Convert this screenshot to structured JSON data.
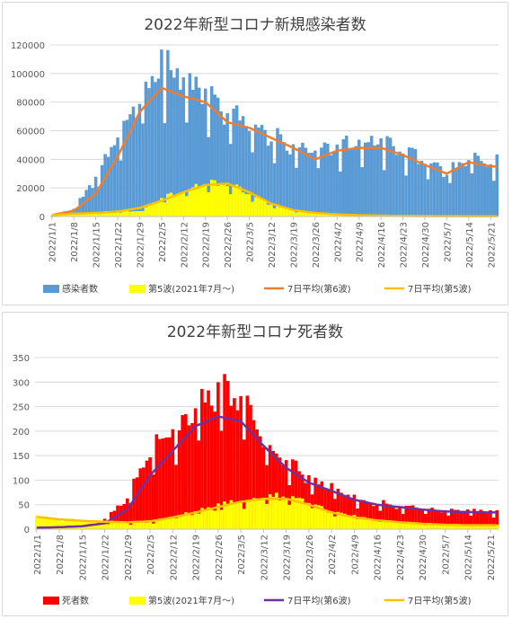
{
  "chart_data": [
    {
      "type": "bar",
      "title": "2022年新型コロナ新規感染者数",
      "y_ticks": [
        "0",
        "20000",
        "40000",
        "60000",
        "80000",
        "100000",
        "120000"
      ],
      "ylim": [
        0,
        120000
      ],
      "x_range": [
        "2022/1/1",
        "2022/5/23"
      ],
      "x_tick_labels": [
        "2022/1/1",
        "2022/1/8",
        "2022/1/15",
        "2022/1/22",
        "2022/1/29",
        "2022/2/5",
        "2022/2/12",
        "2022/2/19",
        "2022/2/26",
        "2022/3/5",
        "2022/3/12",
        "2022/3/19",
        "2022/3/26",
        "2022/4/2",
        "2022/4/9",
        "2022/4/16",
        "2022/4/23",
        "2022/4/30",
        "2022/5/7",
        "2022/5/14",
        "2022/5/21"
      ],
      "series": [
        {
          "name": "感染者数",
          "kind": "bar",
          "color": "#5b9bd5",
          "points": [
            [
              "1/1",
              500
            ],
            [
              "1/8",
              5000
            ],
            [
              "1/15",
              25000
            ],
            [
              "1/22",
              50000
            ],
            [
              "1/29",
              80000
            ],
            [
              "2/5",
              100000
            ],
            [
              "2/12",
              88000
            ],
            [
              "2/19",
              80000
            ],
            [
              "2/26",
              68000
            ],
            [
              "3/5",
              60000
            ],
            [
              "3/12",
              53000
            ],
            [
              "3/19",
              44000
            ],
            [
              "3/26",
              42000
            ],
            [
              "4/2",
              46000
            ],
            [
              "4/9",
              48000
            ],
            [
              "4/16",
              49000
            ],
            [
              "4/23",
              42000
            ],
            [
              "4/30",
              38000
            ],
            [
              "5/7",
              28000
            ],
            [
              "5/14",
              38000
            ],
            [
              "5/21",
              35000
            ]
          ]
        },
        {
          "name": "第5波(2021年7月～)",
          "kind": "bar",
          "color": "#ffff00",
          "points": [
            [
              "1/1",
              300
            ],
            [
              "1/8",
              1500
            ],
            [
              "1/15",
              2000
            ],
            [
              "1/22",
              3000
            ],
            [
              "1/29",
              4000
            ],
            [
              "2/5",
              12000
            ],
            [
              "2/12",
              18000
            ],
            [
              "2/19",
              22000
            ],
            [
              "2/26",
              22000
            ],
            [
              "3/5",
              15000
            ],
            [
              "3/12",
              8000
            ],
            [
              "3/19",
              4000
            ],
            [
              "3/26",
              2000
            ],
            [
              "4/2",
              1200
            ],
            [
              "4/9",
              800
            ],
            [
              "4/16",
              500
            ],
            [
              "4/23",
              400
            ],
            [
              "4/30",
              300
            ],
            [
              "5/7",
              250
            ],
            [
              "5/14",
              200
            ],
            [
              "5/21",
              200
            ]
          ]
        },
        {
          "name": "7日平均(第6波)",
          "kind": "line",
          "color": "#ed7d31",
          "points": [
            [
              "1/1",
              1000
            ],
            [
              "1/8",
              4000
            ],
            [
              "1/15",
              16000
            ],
            [
              "1/22",
              42000
            ],
            [
              "1/29",
              73000
            ],
            [
              "2/5",
              90000
            ],
            [
              "2/12",
              84000
            ],
            [
              "2/19",
              80000
            ],
            [
              "2/26",
              66000
            ],
            [
              "3/5",
              62000
            ],
            [
              "3/12",
              55000
            ],
            [
              "3/19",
              48000
            ],
            [
              "3/26",
              40000
            ],
            [
              "4/2",
              46000
            ],
            [
              "4/9",
              48000
            ],
            [
              "4/16",
              48000
            ],
            [
              "4/23",
              43000
            ],
            [
              "4/30",
              36000
            ],
            [
              "5/7",
              30000
            ],
            [
              "5/14",
              38000
            ],
            [
              "5/21",
              35000
            ]
          ]
        },
        {
          "name": "7日平均(第5波)",
          "kind": "line",
          "color": "#ffc000",
          "points": [
            [
              "1/1",
              1000
            ],
            [
              "1/8",
              2000
            ],
            [
              "1/15",
              2500
            ],
            [
              "1/22",
              3500
            ],
            [
              "1/29",
              6000
            ],
            [
              "2/5",
              11000
            ],
            [
              "2/12",
              17000
            ],
            [
              "2/19",
              22000
            ],
            [
              "2/26",
              23000
            ],
            [
              "3/5",
              17000
            ],
            [
              "3/12",
              9000
            ],
            [
              "3/19",
              4500
            ],
            [
              "3/26",
              2500
            ],
            [
              "4/2",
              1500
            ],
            [
              "4/9",
              900
            ],
            [
              "4/16",
              600
            ],
            [
              "4/23",
              400
            ],
            [
              "4/30",
              300
            ],
            [
              "5/7",
              250
            ],
            [
              "5/14",
              200
            ],
            [
              "5/21",
              200
            ]
          ]
        }
      ]
    },
    {
      "type": "bar",
      "title": "2022年新型コロナ死者数",
      "y_ticks": [
        "0",
        "50",
        "100",
        "150",
        "200",
        "250",
        "300",
        "350"
      ],
      "ylim": [
        0,
        350
      ],
      "x_range": [
        "2022/1/1",
        "2022/5/23"
      ],
      "x_tick_labels": [
        "2022/1/1",
        "2022/1/8",
        "2022/1/15",
        "2022/1/22",
        "2022/1/29",
        "2022/2/5",
        "2022/2/12",
        "2022/2/19",
        "2022/2/26",
        "2022/3/5",
        "2022/3/12",
        "2022/3/19",
        "2022/3/26",
        "2022/4/2",
        "2022/4/9",
        "2022/4/16",
        "2022/4/23",
        "2022/4/30",
        "2022/5/7",
        "2022/5/14",
        "2022/5/21"
      ],
      "series": [
        {
          "name": "死者数",
          "kind": "bar",
          "color": "#ff0000",
          "points": [
            [
              "1/1",
              5
            ],
            [
              "1/8",
              5
            ],
            [
              "1/15",
              8
            ],
            [
              "1/22",
              18
            ],
            [
              "1/29",
              60
            ],
            [
              "2/5",
              150
            ],
            [
              "2/12",
              180
            ],
            [
              "2/19",
              230
            ],
            [
              "2/26",
              260
            ],
            [
              "3/5",
              250
            ],
            [
              "3/12",
              170
            ],
            [
              "3/19",
              130
            ],
            [
              "3/26",
              95
            ],
            [
              "4/2",
              80
            ],
            [
              "4/9",
              60
            ],
            [
              "4/16",
              50
            ],
            [
              "4/23",
              45
            ],
            [
              "4/30",
              40
            ],
            [
              "5/7",
              35
            ],
            [
              "5/14",
              35
            ],
            [
              "5/21",
              35
            ]
          ]
        },
        {
          "name": "第5波(2021年7月～)",
          "kind": "bar",
          "color": "#ffff00",
          "points": [
            [
              "1/1",
              28
            ],
            [
              "1/8",
              20
            ],
            [
              "1/15",
              18
            ],
            [
              "1/22",
              15
            ],
            [
              "1/29",
              12
            ],
            [
              "2/5",
              15
            ],
            [
              "2/12",
              25
            ],
            [
              "2/19",
              35
            ],
            [
              "2/26",
              45
            ],
            [
              "3/5",
              55
            ],
            [
              "3/12",
              62
            ],
            [
              "3/19",
              65
            ],
            [
              "3/26",
              55
            ],
            [
              "4/2",
              35
            ],
            [
              "4/9",
              25
            ],
            [
              "4/16",
              18
            ],
            [
              "4/23",
              14
            ],
            [
              "4/30",
              11
            ],
            [
              "5/7",
              9
            ],
            [
              "5/14",
              8
            ],
            [
              "5/21",
              8
            ]
          ]
        },
        {
          "name": "7日平均(第6波)",
          "kind": "line",
          "color": "#7030a0",
          "points": [
            [
              "1/1",
              3
            ],
            [
              "1/8",
              4
            ],
            [
              "1/15",
              6
            ],
            [
              "1/22",
              12
            ],
            [
              "1/29",
              40
            ],
            [
              "2/5",
              110
            ],
            [
              "2/12",
              160
            ],
            [
              "2/19",
              210
            ],
            [
              "2/26",
              230
            ],
            [
              "3/5",
              220
            ],
            [
              "3/12",
              170
            ],
            [
              "3/19",
              125
            ],
            [
              "3/26",
              95
            ],
            [
              "4/2",
              78
            ],
            [
              "4/9",
              60
            ],
            [
              "4/16",
              50
            ],
            [
              "4/23",
              45
            ],
            [
              "4/30",
              40
            ],
            [
              "5/7",
              36
            ],
            [
              "5/14",
              35
            ],
            [
              "5/21",
              34
            ]
          ]
        },
        {
          "name": "7日平均(第5波)",
          "kind": "line",
          "color": "#ffc000",
          "points": [
            [
              "1/1",
              25
            ],
            [
              "1/8",
              20
            ],
            [
              "1/15",
              17
            ],
            [
              "1/22",
              15
            ],
            [
              "1/29",
              14
            ],
            [
              "2/5",
              16
            ],
            [
              "2/12",
              24
            ],
            [
              "2/19",
              34
            ],
            [
              "2/26",
              45
            ],
            [
              "3/5",
              56
            ],
            [
              "3/12",
              62
            ],
            [
              "3/19",
              62
            ],
            [
              "3/26",
              50
            ],
            [
              "4/2",
              34
            ],
            [
              "4/9",
              24
            ],
            [
              "4/16",
              18
            ],
            [
              "4/23",
              14
            ],
            [
              "4/30",
              11
            ],
            [
              "5/7",
              9
            ],
            [
              "5/14",
              8
            ],
            [
              "5/21",
              8
            ]
          ]
        }
      ]
    }
  ]
}
